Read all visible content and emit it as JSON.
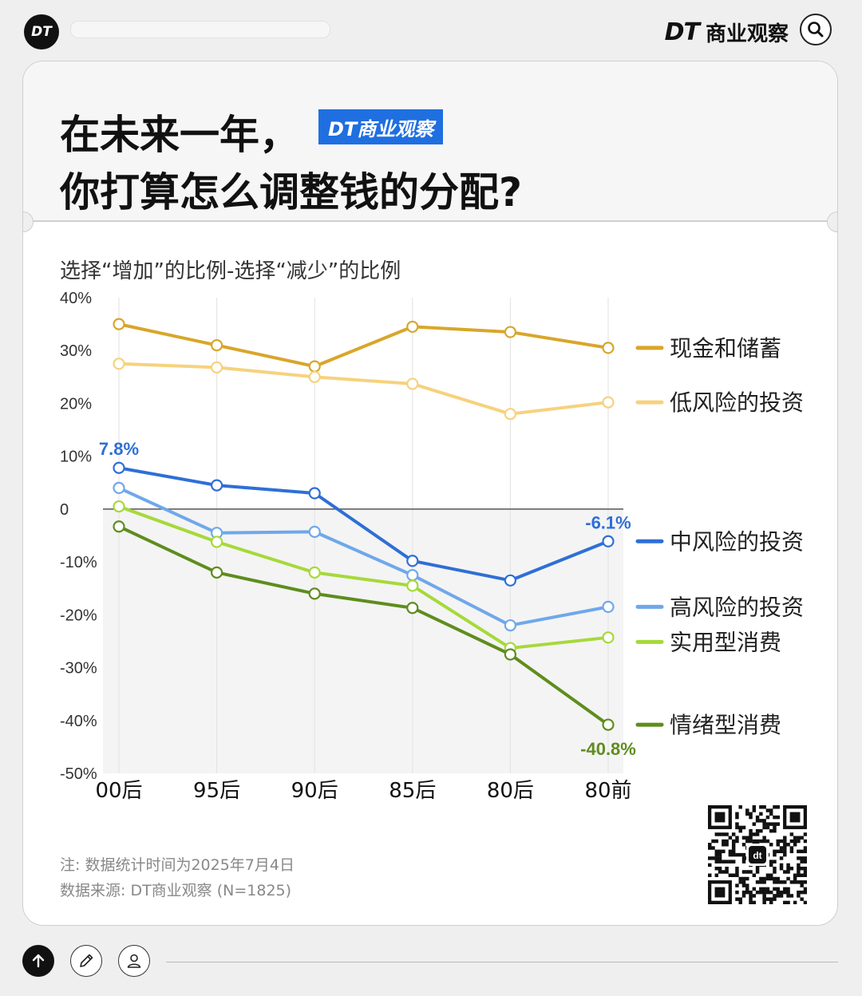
{
  "topbar": {
    "logo_text": "DT",
    "brand_dt": "DT",
    "brand_name": "商业观察",
    "icons": [
      "search-icon"
    ]
  },
  "title": {
    "line1": "在未来一年，",
    "line2": "你打算怎么调整钱的分配?",
    "tag": "DT商业观察"
  },
  "chart_data": {
    "type": "line",
    "subtitle": "选择“增加”的比例-选择“减少”的比例",
    "categories": [
      "00后",
      "95后",
      "90后",
      "85后",
      "80后",
      "80前"
    ],
    "ylim": [
      -50,
      40
    ],
    "yticks": [
      40,
      30,
      20,
      10,
      0,
      -10,
      -20,
      -30,
      -40,
      -50
    ],
    "ytick_labels": [
      "40%",
      "30%",
      "20%",
      "10%",
      "0",
      "-10%",
      "-20%",
      "-30%",
      "-40%",
      "-50%"
    ],
    "grid": "vertical",
    "legend_placement": "right",
    "series": [
      {
        "name": "现金和储蓄",
        "color": "#d8a62a",
        "values": [
          35.0,
          31.0,
          27.0,
          34.5,
          33.5,
          30.5
        ]
      },
      {
        "name": "低风险的投资",
        "color": "#f6d27d",
        "values": [
          27.5,
          26.8,
          25.0,
          23.7,
          18.0,
          20.2
        ]
      },
      {
        "name": "中风险的投资",
        "color": "#2e6fd6",
        "values": [
          7.8,
          4.5,
          3.0,
          -9.8,
          -13.5,
          -6.1
        ]
      },
      {
        "name": "高风险的投资",
        "color": "#6fa8ea",
        "values": [
          4.0,
          -4.5,
          -4.3,
          -12.5,
          -22.0,
          -18.5
        ]
      },
      {
        "name": "实用型消费",
        "color": "#a6d93a",
        "values": [
          0.5,
          -6.2,
          -12.0,
          -14.5,
          -26.3,
          -24.3
        ]
      },
      {
        "name": "情绪型消费",
        "color": "#5e8d1e",
        "values": [
          -3.3,
          -12.0,
          -16.0,
          -18.7,
          -27.5,
          -40.8
        ]
      }
    ],
    "annotations": [
      {
        "text": "7.8%",
        "series": "中风险的投资",
        "category": "00后",
        "color": "#2e6fd6"
      },
      {
        "text": "-6.1%",
        "series": "中风险的投资",
        "category": "80前",
        "color": "#2e6fd6"
      },
      {
        "text": "-40.8%",
        "series": "情绪型消费",
        "category": "80前",
        "color": "#5e8d1e"
      }
    ]
  },
  "footer": {
    "note": "注: 数据统计时间为2025年7月4日",
    "source": "数据来源: DT商业观察 (N=1825)",
    "qr_center": "dt"
  },
  "toolbar": {
    "icons": [
      "arrow-up-icon",
      "pencil-icon",
      "user-icon"
    ]
  }
}
